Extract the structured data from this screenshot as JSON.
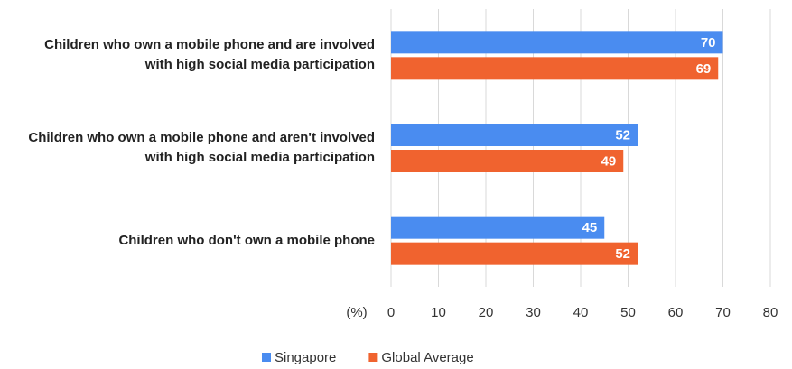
{
  "chart_data": {
    "type": "bar",
    "orientation": "horizontal",
    "categories": [
      "Children who own a mobile phone and are involved with high social media participation",
      "Children who own a mobile phone and aren't involved with high social media participation",
      "Children who don't own a mobile phone"
    ],
    "series": [
      {
        "name": "Singapore",
        "color": "#4a8cf0",
        "values": [
          70,
          52,
          45
        ]
      },
      {
        "name": "Global Average",
        "color": "#f0632f",
        "values": [
          69,
          49,
          52
        ]
      }
    ],
    "x_label": "(%)",
    "xlim": [
      0,
      80
    ],
    "xticks": [
      0,
      10,
      20,
      30,
      40,
      50,
      60,
      70,
      80
    ],
    "grid": true,
    "legend": "bottom"
  }
}
